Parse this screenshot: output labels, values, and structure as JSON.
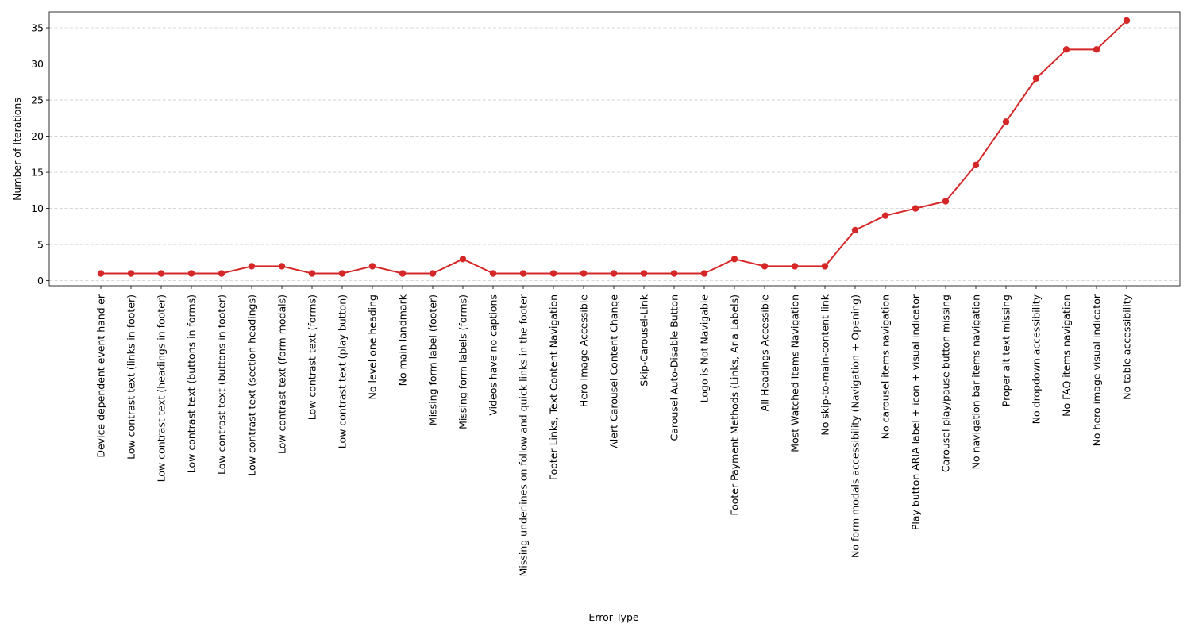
{
  "chart_data": {
    "type": "line",
    "title": "",
    "xlabel": "Error Type",
    "ylabel": "Number of Iterations",
    "ylim": [
      -0.7,
      37.2
    ],
    "yticks": [
      0,
      5,
      10,
      15,
      20,
      25,
      30,
      35
    ],
    "grid": "y-dashed",
    "legend": "none",
    "line_color": "#d62728",
    "categories": [
      "Device dependent event handler",
      "Low contrast text (links in footer)",
      "Low contrast text (headings in footer)",
      "Low contrast text (buttons in forms)",
      "Low contrast text (buttons in footer)",
      "Low contrast text (section headings)",
      "Low contrast text (form modals)",
      "Low contrast text (forms)",
      "Low contrast text (play button)",
      "No level one heading",
      "No main landmark",
      "Missing form label (footer)",
      "Missing form labels (forms)",
      "Videos have no captions",
      "Missing underlines on follow and quick links in the footer",
      "Footer Links, Text Content Navigation",
      "Hero Image Accessible",
      "Alert Carousel Content Change",
      "Skip-Carousel-Link",
      "Carousel Auto-Disable Button",
      "Logo is Not Navigable",
      "Footer Payment Methods (Links, Aria Labels)",
      "All Headings Accessible",
      "Most Watched Items Navigation",
      "No skip-to-main-content link",
      "No form modals accessibility (Navigation + Opening)",
      "No carousel items navigation",
      "Play button ARIA label + icon + visual indicator",
      "Carousel play/pause button missing",
      "No navigation bar items navigation",
      "Proper alt text missing",
      "No dropdown accessibility",
      "No FAQ items navigation",
      "No hero image visual indicator",
      "No table accessibility"
    ],
    "series": [
      {
        "values": [
          1,
          1,
          1,
          1,
          1,
          2,
          2,
          1,
          1,
          2,
          1,
          1,
          3,
          1,
          1,
          1,
          1,
          1,
          1,
          1,
          1,
          3,
          2,
          2,
          2,
          7,
          9,
          10,
          11,
          16,
          22,
          28,
          32,
          32,
          36
        ]
      }
    ]
  }
}
